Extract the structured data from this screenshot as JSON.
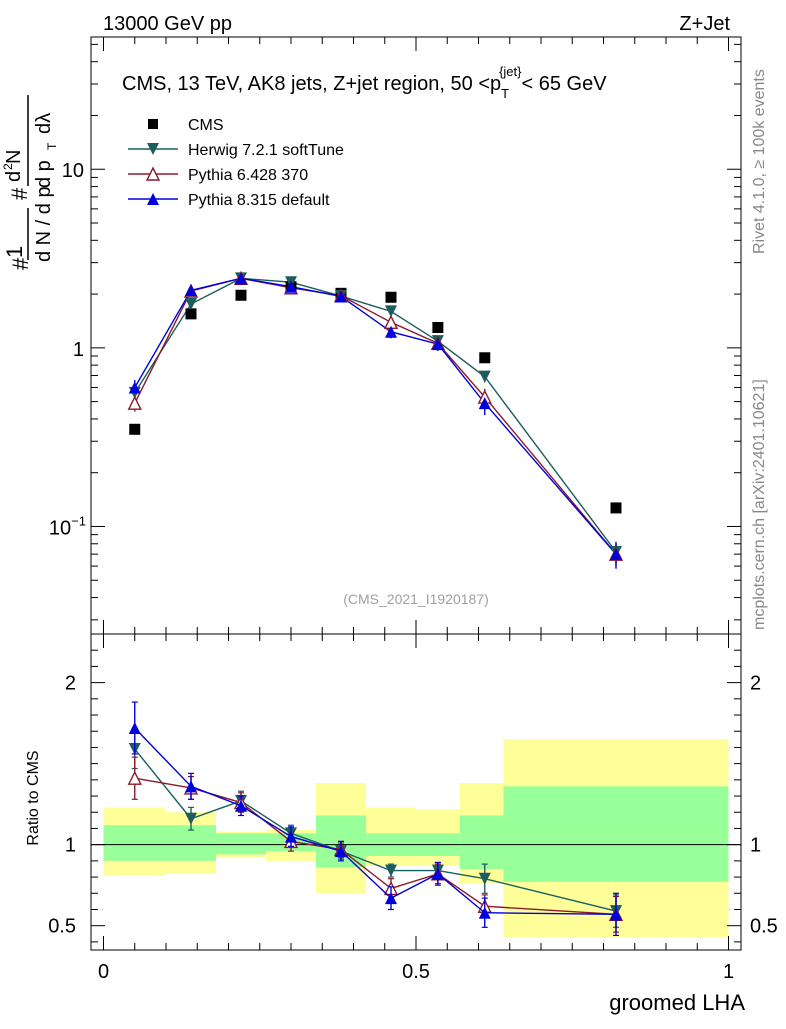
{
  "header": {
    "left": "13000 GeV pp",
    "right": "Z+Jet"
  },
  "side": {
    "rivet": "Rivet 4.1.0, ≥ 100k events",
    "mcplots": "mcplots.cern.ch [arXiv:2401.10621]"
  },
  "chart_data": {
    "type": "line",
    "title": "CMS, 13 TeV, AK8 jets, Z+jet region, 50 <p_T^{jet}< 65 GeV",
    "title_main": "CMS, 13 TeV, AK8 jets, Z+jet region, 50 <p",
    "title_sub": "T",
    "title_sup": "{jet}",
    "title_tail": "< 65 GeV",
    "analysis_tag": "(CMS_2021_I1920187)",
    "xlabel": "groomed LHA",
    "ylabel": "1/(dN/dpT) d2N/(dpT dlambda)",
    "ratio_ylabel": "Ratio to CMS",
    "xlim": [
      -0.02,
      1.02
    ],
    "ylim_main": [
      0.025,
      55
    ],
    "ylim_ratio": [
      0.35,
      2.3
    ],
    "yscale_main": "log",
    "main_ticks": [
      {
        "v": 0.1,
        "base": "10",
        "exp": "−1"
      },
      {
        "v": 1,
        "base": "1",
        "exp": ""
      },
      {
        "v": 10,
        "base": "10",
        "exp": ""
      }
    ],
    "ratio_ticks": [
      {
        "v": 0.5,
        "label": "0.5"
      },
      {
        "v": 1,
        "label": "1"
      },
      {
        "v": 2,
        "label": "2"
      }
    ],
    "x_ticks": [
      {
        "v": 0,
        "label": "0"
      },
      {
        "v": 0.5,
        "label": "0.5"
      },
      {
        "v": 1,
        "label": "1"
      }
    ],
    "x": [
      0.05,
      0.14,
      0.22,
      0.3,
      0.38,
      0.46,
      0.535,
      0.61,
      0.82
    ],
    "bin_edges": [
      0.0,
      0.1,
      0.18,
      0.26,
      0.34,
      0.42,
      0.5,
      0.57,
      0.64,
      1.0
    ],
    "series": [
      {
        "name": "CMS",
        "role": "data",
        "color": "#000000",
        "marker": "square",
        "values": [
          0.35,
          1.55,
          1.97,
          2.2,
          2.02,
          1.92,
          1.3,
          0.88,
          0.127
        ]
      },
      {
        "name": "Herwig 7.2.1 softTune",
        "color": "#1b5e5e",
        "marker": "triangle-down",
        "values": [
          0.56,
          1.76,
          2.45,
          2.33,
          1.95,
          1.6,
          1.09,
          0.69,
          0.072
        ],
        "errors": [
          0.04,
          0.08,
          0.09,
          0.07,
          0.07,
          0.06,
          0.05,
          0.05,
          0.008
        ],
        "ratio": [
          1.59,
          1.16,
          1.27,
          1.07,
          0.96,
          0.84,
          0.84,
          0.79,
          0.59
        ],
        "ratio_err": [
          0.12,
          0.07,
          0.06,
          0.05,
          0.05,
          0.04,
          0.05,
          0.09,
          0.1
        ]
      },
      {
        "name": "Pythia 6.428 370",
        "color": "#8b1a2a",
        "marker": "triangle-open",
        "values": [
          0.49,
          2.08,
          2.45,
          2.17,
          1.96,
          1.39,
          1.06,
          0.53,
          0.07
        ],
        "errors": [
          0.05,
          0.1,
          0.09,
          0.07,
          0.07,
          0.08,
          0.07,
          0.06,
          0.01
        ],
        "ratio": [
          1.41,
          1.35,
          1.26,
          1.02,
          0.97,
          0.73,
          0.82,
          0.62,
          0.57
        ],
        "ratio_err": [
          0.13,
          0.07,
          0.06,
          0.06,
          0.05,
          0.06,
          0.06,
          0.07,
          0.11
        ]
      },
      {
        "name": "Pythia 8.315 default",
        "color": "#0000dd",
        "marker": "triangle-up",
        "values": [
          0.6,
          2.1,
          2.45,
          2.2,
          1.94,
          1.23,
          1.05,
          0.49,
          0.07
        ],
        "errors": [
          0.06,
          0.12,
          0.1,
          0.08,
          0.08,
          0.1,
          0.09,
          0.07,
          0.012
        ],
        "ratio": [
          1.72,
          1.36,
          1.24,
          1.05,
          0.96,
          0.67,
          0.82,
          0.58,
          0.57
        ],
        "ratio_err": [
          0.16,
          0.08,
          0.06,
          0.06,
          0.06,
          0.07,
          0.07,
          0.09,
          0.13
        ]
      }
    ],
    "uncertainty_bands": [
      {
        "name": "stat",
        "color": "#99ff99",
        "low": [
          0.9,
          0.9,
          0.94,
          0.96,
          0.86,
          0.93,
          0.93,
          0.85,
          0.77
        ],
        "high": [
          1.12,
          1.12,
          1.07,
          1.07,
          1.18,
          1.07,
          1.07,
          1.18,
          1.36
        ]
      },
      {
        "name": "total",
        "color": "#ffff99",
        "low": [
          0.81,
          0.82,
          0.92,
          0.9,
          0.7,
          0.87,
          0.87,
          0.76,
          0.43
        ],
        "high": [
          1.23,
          1.2,
          1.08,
          1.09,
          1.38,
          1.23,
          1.22,
          1.38,
          1.65
        ]
      }
    ]
  }
}
